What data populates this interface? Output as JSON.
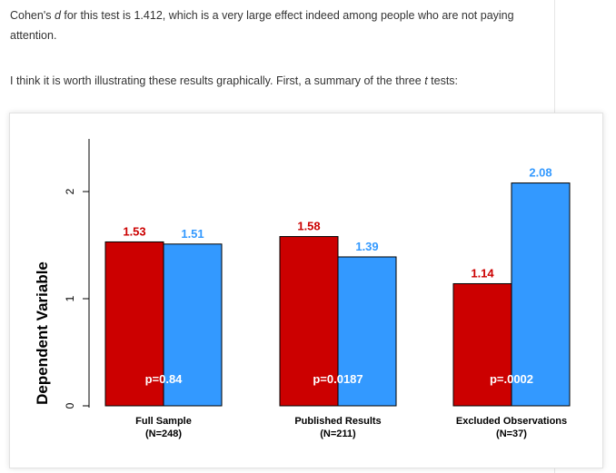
{
  "article": {
    "p1": {
      "pre": "Cohen's ",
      "em": "d",
      "post": " for this test is 1.412, which is a very large effect indeed among people who are not paying attention."
    },
    "p2": {
      "pre": "I think it is worth illustrating these results graphically. First, a summary of the three ",
      "em": "t",
      "post": " tests:"
    }
  },
  "chart_data": {
    "type": "bar",
    "title": "",
    "xlabel": "",
    "ylabel": "Dependent Variable",
    "ylim": [
      0,
      2.2
    ],
    "yticks": [
      "0",
      "1",
      "2"
    ],
    "grid": false,
    "categories": [
      {
        "line1": "Full Sample",
        "line2": "(N=248)",
        "p_label": "p=0.84"
      },
      {
        "line1": "Published Results",
        "line2": "(N=211)",
        "p_label": "p=0.0187"
      },
      {
        "line1": "Excluded Observations",
        "line2": "(N=37)",
        "p_label": "p=.0002"
      }
    ],
    "series": [
      {
        "values": [
          1.53,
          1.58,
          1.14
        ],
        "labels": [
          "1.53",
          "1.58",
          "1.14"
        ],
        "color": "#cc0000"
      },
      {
        "values": [
          1.51,
          1.39,
          2.08
        ],
        "labels": [
          "1.51",
          "1.39",
          "2.08"
        ],
        "color": "#3399ff"
      }
    ]
  }
}
